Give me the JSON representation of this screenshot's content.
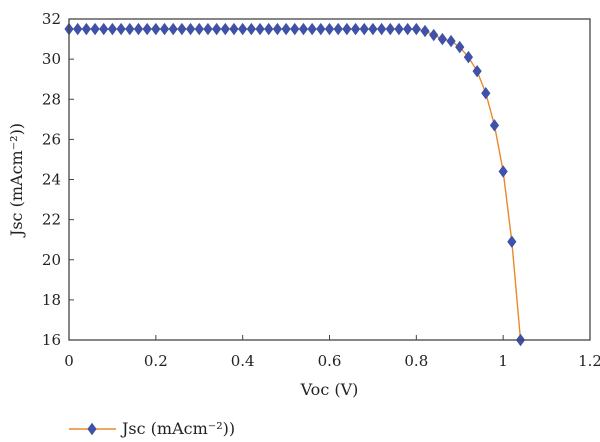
{
  "chart_data": {
    "type": "line",
    "title": "",
    "xlabel": "Voc (V)",
    "ylabel": "Jsc (mAcm⁻²))",
    "xlim": [
      0,
      1.2
    ],
    "ylim": [
      16,
      32
    ],
    "xticks": [
      0,
      0.2,
      0.4,
      0.6,
      0.8,
      1,
      1.2
    ],
    "xtick_labels": [
      "0",
      "0.2",
      "0.4",
      "0.6",
      "0.8",
      "1",
      "1.2"
    ],
    "yticks": [
      16,
      18,
      20,
      22,
      24,
      26,
      28,
      30,
      32
    ],
    "ytick_labels": [
      "16",
      "18",
      "20",
      "22",
      "24",
      "26",
      "28",
      "30",
      "32"
    ],
    "grid": false,
    "legend_position": "bottom-left",
    "series": [
      {
        "name": "Jsc (mAcm⁻²))",
        "line_color": "#E8892B",
        "marker_color": "#3F51A8",
        "marker": "diamond",
        "x": [
          0,
          0.02,
          0.04,
          0.06,
          0.08,
          0.1,
          0.12,
          0.14,
          0.16,
          0.18,
          0.2,
          0.22,
          0.24,
          0.26,
          0.28,
          0.3,
          0.32,
          0.34,
          0.36,
          0.38,
          0.4,
          0.42,
          0.44,
          0.46,
          0.48,
          0.5,
          0.52,
          0.54,
          0.56,
          0.58,
          0.6,
          0.62,
          0.64,
          0.66,
          0.68,
          0.7,
          0.72,
          0.74,
          0.76,
          0.78,
          0.8,
          0.82,
          0.84,
          0.86,
          0.88,
          0.9,
          0.92,
          0.94,
          0.96,
          0.98,
          1.0,
          1.02,
          1.04
        ],
        "y": [
          31.5,
          31.5,
          31.5,
          31.5,
          31.5,
          31.5,
          31.5,
          31.5,
          31.5,
          31.5,
          31.5,
          31.5,
          31.5,
          31.5,
          31.5,
          31.5,
          31.5,
          31.5,
          31.5,
          31.5,
          31.5,
          31.5,
          31.5,
          31.5,
          31.5,
          31.5,
          31.5,
          31.5,
          31.5,
          31.5,
          31.5,
          31.5,
          31.5,
          31.5,
          31.5,
          31.5,
          31.5,
          31.5,
          31.5,
          31.5,
          31.5,
          31.4,
          31.2,
          31.0,
          30.9,
          30.6,
          30.1,
          29.4,
          28.3,
          26.7,
          24.4,
          20.9,
          16.0
        ]
      }
    ]
  }
}
